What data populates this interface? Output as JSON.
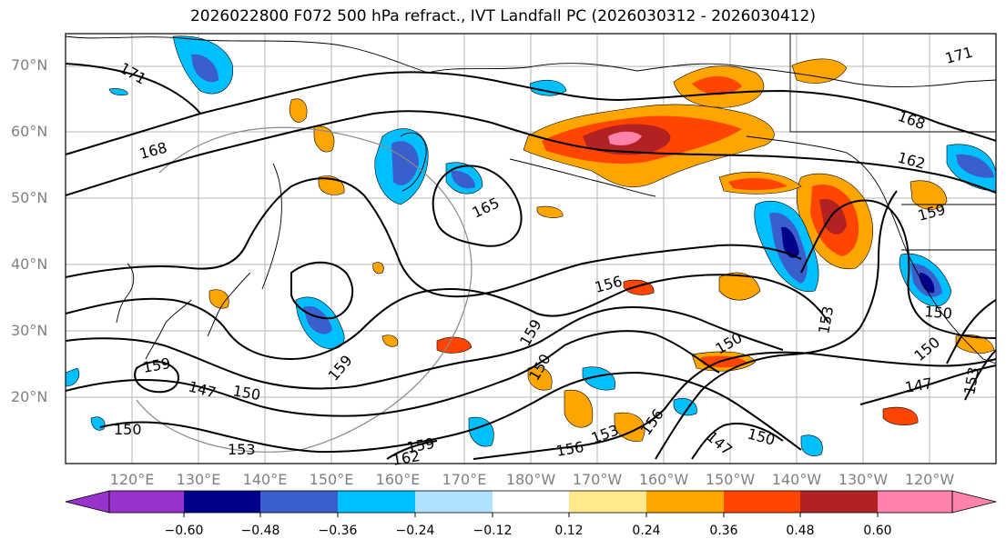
{
  "title": "2026022800 F072 500 hPa refract., IVT Landfall PC (2026030312 - 2026030412)",
  "lat_labels": [
    "70°N",
    "60°N",
    "50°N",
    "40°N",
    "30°N",
    "20°N"
  ],
  "lon_labels": [
    "120°E",
    "130°E",
    "140°E",
    "150°E",
    "160°E",
    "170°E",
    "180°W",
    "170°W",
    "160°W",
    "150°W",
    "140°W",
    "130°W",
    "120°W"
  ],
  "contour_labels": [
    "171",
    "168",
    "165",
    "162",
    "159",
    "156",
    "153",
    "150",
    "147"
  ],
  "colorbar": {
    "ticks": [
      "−0.60",
      "−0.48",
      "−0.36",
      "−0.24",
      "−0.12",
      "0.12",
      "0.24",
      "0.36",
      "0.48",
      "0.60"
    ],
    "colors": [
      "#9932cc",
      "#00008b",
      "#3a5fcd",
      "#00bfff",
      "#b0e2ff",
      "#ffffff",
      "#ffe98a",
      "#ffa500",
      "#ff4500",
      "#b22222",
      "#ff82ab"
    ]
  },
  "palette": {
    "neg_strong": "#3a5fcd",
    "neg_mid": "#00bfff",
    "neg_weak": "#b0e2ff",
    "neg_deep": "#00008b",
    "neg_extreme": "#9932cc",
    "pos_weak": "#ffe98a",
    "pos_mid": "#ffa500",
    "pos_strong": "#ff4500",
    "pos_deeper": "#b22222",
    "pos_extreme": "#ff82ab"
  }
}
